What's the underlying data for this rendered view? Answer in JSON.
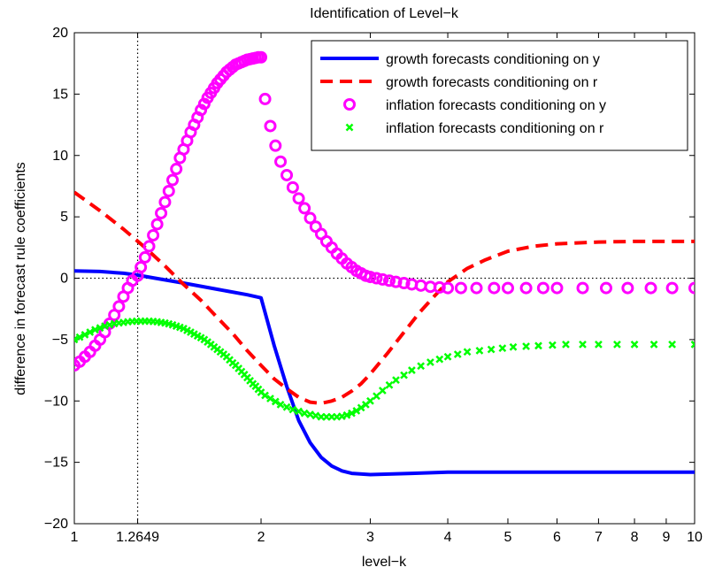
{
  "chart_data": {
    "type": "line",
    "title": "Identification of Level−k",
    "xlabel": "level−k",
    "ylabel": "difference in forecast rule coefficients",
    "x_scale": "log",
    "xlim": [
      1,
      10
    ],
    "ylim": [
      -20,
      20
    ],
    "x_ticks": [
      1,
      1.2649,
      2,
      3,
      4,
      5,
      6,
      7,
      8,
      9,
      10
    ],
    "x_tick_labels": [
      "1",
      "1.2649",
      "2",
      "3",
      "4",
      "5",
      "6",
      "7",
      "8",
      "9",
      "10"
    ],
    "y_ticks": [
      -20,
      -15,
      -10,
      -5,
      0,
      5,
      10,
      15,
      20
    ],
    "y_tick_labels": [
      "−20",
      "−15",
      "−10",
      "−5",
      "0",
      "5",
      "10",
      "15",
      "20"
    ],
    "reference_lines": {
      "horizontal_y": 0,
      "vertical_x": 1.2649
    },
    "legend_position": "top-right",
    "series": [
      {
        "name": "growth forecasts conditioning on y",
        "style": "solid-line",
        "color": "#0000ff",
        "x": [
          1,
          1.1,
          1.2,
          1.2649,
          1.35,
          1.5,
          1.7,
          1.9,
          2,
          2.1,
          2.2,
          2.3,
          2.4,
          2.5,
          2.6,
          2.7,
          2.8,
          3,
          3.5,
          4,
          5,
          6,
          8,
          10
        ],
        "y": [
          0.6,
          0.55,
          0.4,
          0.25,
          0,
          -0.4,
          -0.9,
          -1.35,
          -1.6,
          -5.5,
          -8.8,
          -11.6,
          -13.4,
          -14.6,
          -15.3,
          -15.7,
          -15.9,
          -16.0,
          -15.9,
          -15.8,
          -15.8,
          -15.8,
          -15.8,
          -15.8
        ]
      },
      {
        "name": "growth forecasts conditioning on r",
        "style": "dashed-line",
        "color": "#ff0000",
        "x": [
          1,
          1.1,
          1.2,
          1.3,
          1.4,
          1.5,
          1.6,
          1.7,
          1.8,
          1.9,
          2,
          2.1,
          2.2,
          2.3,
          2.4,
          2.5,
          2.6,
          2.7,
          2.8,
          2.9,
          3,
          3.2,
          3.4,
          3.6,
          3.8,
          4,
          4.3,
          4.6,
          5,
          5.5,
          6,
          7,
          8,
          9,
          10
        ],
        "y": [
          7.0,
          5.5,
          4.0,
          2.5,
          1.0,
          -0.5,
          -1.8,
          -3.2,
          -4.5,
          -5.9,
          -7.1,
          -8.2,
          -9.0,
          -9.7,
          -10.1,
          -10.2,
          -10.0,
          -9.7,
          -9.2,
          -8.6,
          -7.8,
          -6.1,
          -4.4,
          -2.8,
          -1.5,
          -0.3,
          0.8,
          1.5,
          2.2,
          2.6,
          2.8,
          2.95,
          3.0,
          3.0,
          3.0
        ]
      },
      {
        "name": "inflation forecasts conditioning on y",
        "style": "circle-markers",
        "color": "#ff00ff",
        "x": [
          1,
          1.02,
          1.04,
          1.06,
          1.08,
          1.1,
          1.12,
          1.14,
          1.16,
          1.18,
          1.2,
          1.22,
          1.24,
          1.2649,
          1.28,
          1.3,
          1.32,
          1.34,
          1.36,
          1.38,
          1.4,
          1.42,
          1.44,
          1.46,
          1.48,
          1.5,
          1.52,
          1.54,
          1.56,
          1.58,
          1.6,
          1.62,
          1.64,
          1.66,
          1.68,
          1.7,
          1.72,
          1.74,
          1.76,
          1.78,
          1.8,
          1.82,
          1.84,
          1.86,
          1.88,
          1.9,
          1.92,
          1.94,
          1.96,
          1.98,
          2.0,
          2.03,
          2.07,
          2.11,
          2.15,
          2.2,
          2.25,
          2.3,
          2.35,
          2.4,
          2.45,
          2.5,
          2.55,
          2.6,
          2.65,
          2.7,
          2.75,
          2.8,
          2.85,
          2.9,
          2.95,
          3.0,
          3.07,
          3.14,
          3.22,
          3.3,
          3.4,
          3.5,
          3.62,
          3.75,
          3.88,
          4.0,
          4.2,
          4.45,
          4.75,
          5.0,
          5.35,
          5.7,
          6.0,
          6.6,
          7.2,
          7.8,
          8.5,
          9.2,
          10.0
        ],
        "y": [
          -7.1,
          -6.8,
          -6.4,
          -6.0,
          -5.5,
          -5.0,
          -4.4,
          -3.7,
          -3.0,
          -2.3,
          -1.5,
          -0.8,
          -0.2,
          0.2,
          0.9,
          1.7,
          2.6,
          3.5,
          4.4,
          5.3,
          6.2,
          7.1,
          8.0,
          8.9,
          9.8,
          10.5,
          11.2,
          11.9,
          12.5,
          13.1,
          13.7,
          14.2,
          14.7,
          15.1,
          15.5,
          15.9,
          16.2,
          16.5,
          16.8,
          17.0,
          17.2,
          17.4,
          17.5,
          17.6,
          17.7,
          17.8,
          17.85,
          17.9,
          17.95,
          18.0,
          18.0,
          14.6,
          12.4,
          10.8,
          9.5,
          8.4,
          7.4,
          6.5,
          5.7,
          4.9,
          4.2,
          3.6,
          3.0,
          2.5,
          2.0,
          1.6,
          1.2,
          0.9,
          0.6,
          0.4,
          0.2,
          0.1,
          0.0,
          -0.1,
          -0.2,
          -0.3,
          -0.4,
          -0.5,
          -0.6,
          -0.7,
          -0.75,
          -0.8,
          -0.8,
          -0.8,
          -0.8,
          -0.8,
          -0.8,
          -0.8,
          -0.8,
          -0.8,
          -0.8,
          -0.8,
          -0.8,
          -0.8,
          -0.8
        ]
      },
      {
        "name": "inflation forecasts conditioning on r",
        "style": "x-markers",
        "color": "#00ff00",
        "x": [
          1,
          1.02,
          1.04,
          1.06,
          1.08,
          1.1,
          1.12,
          1.14,
          1.16,
          1.18,
          1.2,
          1.22,
          1.24,
          1.26,
          1.28,
          1.3,
          1.32,
          1.34,
          1.36,
          1.38,
          1.4,
          1.42,
          1.44,
          1.46,
          1.48,
          1.5,
          1.52,
          1.54,
          1.56,
          1.58,
          1.6,
          1.62,
          1.64,
          1.66,
          1.68,
          1.7,
          1.72,
          1.74,
          1.76,
          1.78,
          1.8,
          1.82,
          1.84,
          1.86,
          1.88,
          1.9,
          1.92,
          1.94,
          1.96,
          1.98,
          2.0,
          2.03,
          2.07,
          2.11,
          2.15,
          2.2,
          2.25,
          2.3,
          2.35,
          2.4,
          2.45,
          2.5,
          2.55,
          2.6,
          2.65,
          2.7,
          2.75,
          2.8,
          2.85,
          2.9,
          2.95,
          3.0,
          3.07,
          3.14,
          3.22,
          3.3,
          3.4,
          3.5,
          3.62,
          3.75,
          3.88,
          4.0,
          4.15,
          4.3,
          4.5,
          4.7,
          4.9,
          5.1,
          5.35,
          5.6,
          5.9,
          6.2,
          6.6,
          7.0,
          7.5,
          8.0,
          8.6,
          9.2,
          10.0
        ],
        "y": [
          -5.0,
          -4.8,
          -4.6,
          -4.4,
          -4.2,
          -4.05,
          -3.9,
          -3.8,
          -3.7,
          -3.65,
          -3.6,
          -3.55,
          -3.52,
          -3.5,
          -3.5,
          -3.5,
          -3.5,
          -3.52,
          -3.55,
          -3.6,
          -3.65,
          -3.72,
          -3.8,
          -3.9,
          -4.0,
          -4.1,
          -4.25,
          -4.4,
          -4.55,
          -4.7,
          -4.85,
          -5.0,
          -5.2,
          -5.4,
          -5.6,
          -5.8,
          -6.0,
          -6.2,
          -6.4,
          -6.65,
          -6.9,
          -7.1,
          -7.35,
          -7.6,
          -7.85,
          -8.1,
          -8.35,
          -8.6,
          -8.8,
          -9.05,
          -9.3,
          -9.55,
          -9.8,
          -10.05,
          -10.3,
          -10.5,
          -10.7,
          -10.85,
          -11.0,
          -11.1,
          -11.2,
          -11.3,
          -11.3,
          -11.3,
          -11.3,
          -11.25,
          -11.15,
          -11.0,
          -10.8,
          -10.55,
          -10.3,
          -10.0,
          -9.6,
          -9.15,
          -8.7,
          -8.3,
          -7.9,
          -7.5,
          -7.15,
          -6.85,
          -6.6,
          -6.4,
          -6.2,
          -6.0,
          -5.9,
          -5.8,
          -5.7,
          -5.6,
          -5.55,
          -5.5,
          -5.45,
          -5.4,
          -5.4,
          -5.4,
          -5.4,
          -5.4,
          -5.4,
          -5.4,
          -5.4
        ]
      }
    ]
  }
}
